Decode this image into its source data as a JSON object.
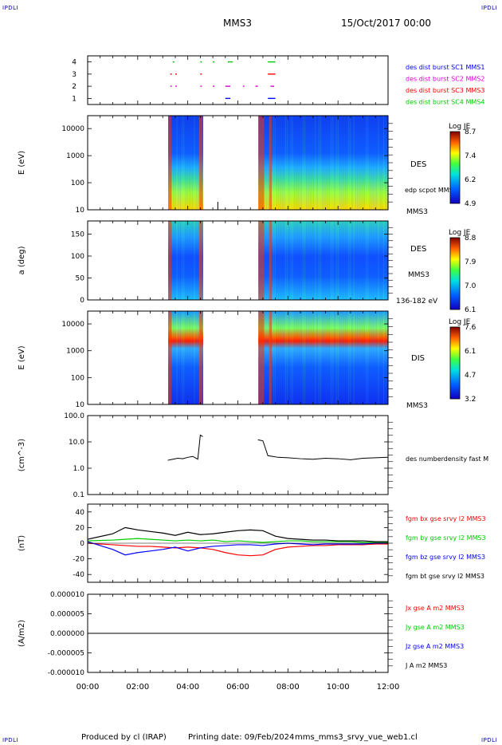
{
  "header": {
    "corner_label": "IPDLI",
    "spacecraft": "MMS3",
    "date": "15/Oct/2017 00:00"
  },
  "footer": {
    "produced_by": "Produced by cl (IRAP)",
    "printing_date": "Printing date: 09/Feb/2024",
    "file": "mms_mms3_srvy_vue_web1.cl"
  },
  "time_axis": {
    "ticks": [
      "00:00",
      "02:00",
      "04:00",
      "06:00",
      "08:00",
      "10:00",
      "12:00"
    ],
    "hours": [
      0,
      2,
      4,
      6,
      8,
      10,
      12
    ]
  },
  "colors": {
    "red": "#ff0000",
    "green": "#00cc00",
    "blue": "#0000ff",
    "magenta": "#dd00dd",
    "black": "#000000"
  },
  "chart_data": [
    {
      "type": "scatter",
      "panel": "burst-availability",
      "yticks": [
        "1",
        "2",
        "3",
        "4"
      ],
      "ylim": [
        0.5,
        4.5
      ],
      "legend": [
        {
          "name": "des dist burst SC1 MMS1",
          "color": "#0000ff"
        },
        {
          "name": "des dist burst SC2 MMS2",
          "color": "#dd00dd"
        },
        {
          "name": "des dist burst SC3 MMS3",
          "color": "#ff0000"
        },
        {
          "name": "des dist burst SC4 MMS4",
          "color": "#00cc00"
        }
      ],
      "series": [
        {
          "y": 1,
          "color": "#0000ff",
          "intervals": [
            [
              5.5,
              5.7
            ],
            [
              7.2,
              7.5
            ]
          ]
        },
        {
          "y": 2,
          "color": "#dd00dd",
          "intervals": [
            [
              3.3,
              3.35
            ],
            [
              3.5,
              3.55
            ],
            [
              4.5,
              4.55
            ],
            [
              5.0,
              5.05
            ],
            [
              5.5,
              5.7
            ],
            [
              6.2,
              6.25
            ],
            [
              6.7,
              6.8
            ],
            [
              7.3,
              7.45
            ]
          ]
        },
        {
          "y": 3,
          "color": "#ff0000",
          "intervals": [
            [
              3.3,
              3.35
            ],
            [
              3.5,
              3.55
            ],
            [
              4.5,
              4.55
            ],
            [
              7.2,
              7.5
            ]
          ]
        },
        {
          "y": 4,
          "color": "#00cc00",
          "intervals": [
            [
              3.4,
              3.45
            ],
            [
              4.5,
              4.55
            ],
            [
              5.0,
              5.05
            ],
            [
              5.6,
              5.8
            ],
            [
              7.2,
              7.5
            ]
          ]
        }
      ]
    },
    {
      "type": "heatmap",
      "panel": "des-energy",
      "ylabel": "E (eV)",
      "yscale": "log",
      "yticks": [
        "10",
        "100",
        "1000",
        "10000"
      ],
      "ylim": [
        10,
        30000
      ],
      "species": "DES",
      "annotation": "edp scpot MMS3",
      "spacecraft": "MMS3",
      "colorbar": {
        "title": "Log JE",
        "ticks": [
          "8.7",
          "7.4",
          "6.2",
          "4.9"
        ]
      },
      "data_gaps_hours": [
        [
          0,
          3.2
        ],
        [
          4.6,
          6.8
        ]
      ]
    },
    {
      "type": "heatmap",
      "panel": "des-pitch-angle",
      "ylabel": "a (deg)",
      "yticks": [
        "0",
        "50",
        "100",
        "150"
      ],
      "ylim": [
        0,
        180
      ],
      "species": "DES",
      "spacecraft": "MMS3",
      "energy_range": "136-182 eV",
      "colorbar": {
        "title": "Log JE",
        "ticks": [
          "8.8",
          "7.9",
          "7.0",
          "6.1"
        ]
      },
      "data_gaps_hours": [
        [
          0,
          3.2
        ],
        [
          4.6,
          6.8
        ]
      ]
    },
    {
      "type": "heatmap",
      "panel": "dis-energy",
      "ylabel": "E (eV)",
      "yscale": "log",
      "yticks": [
        "10",
        "100",
        "1000",
        "10000"
      ],
      "ylim": [
        10,
        30000
      ],
      "species": "DIS",
      "spacecraft": "MMS3",
      "colorbar": {
        "title": "Log JE",
        "ticks": [
          "7.6",
          "6.1",
          "4.7",
          "3.2"
        ]
      },
      "data_gaps_hours": [
        [
          0,
          3.2
        ],
        [
          4.6,
          6.8
        ]
      ]
    },
    {
      "type": "line",
      "panel": "density",
      "ylabel": "(cm^-3)",
      "yscale": "log",
      "yticks": [
        "0.1",
        "1.0",
        "10.0",
        "100.0"
      ],
      "ylim": [
        0.1,
        100
      ],
      "legend": [
        {
          "name": "des numberdensity fast M",
          "color": "#000000"
        }
      ],
      "segments": [
        {
          "x": [
            3.2,
            3.4,
            3.6,
            3.8,
            4.0,
            4.2,
            4.4,
            4.5,
            4.6
          ],
          "y": [
            2.0,
            2.2,
            2.4,
            2.3,
            2.6,
            2.8,
            2.2,
            18,
            16
          ]
        },
        {
          "x": [
            6.8,
            7.0,
            7.2,
            7.4,
            7.6,
            8.0,
            8.5,
            9.0,
            9.5,
            10.0,
            10.5,
            11.0,
            11.5,
            12.0
          ],
          "y": [
            12,
            11,
            3.0,
            2.8,
            2.6,
            2.5,
            2.3,
            2.2,
            2.4,
            2.3,
            2.1,
            2.4,
            2.5,
            2.6
          ]
        }
      ]
    },
    {
      "type": "line",
      "panel": "magnetic-field",
      "ylabel": "(nT)",
      "yticks": [
        "-40",
        "-20",
        "0",
        "20",
        "40"
      ],
      "ylim": [
        -50,
        50
      ],
      "x": [
        0,
        1,
        1.5,
        2,
        2.5,
        3,
        3.5,
        4,
        4.5,
        5,
        5.5,
        6,
        6.5,
        7,
        7.5,
        8,
        8.5,
        9,
        9.5,
        10,
        10.5,
        11,
        11.5,
        12
      ],
      "series": [
        {
          "name": "fgm bx gse srvy l2 MMS3",
          "color": "#ff0000",
          "values": [
            0,
            -2,
            -3,
            -4,
            -4,
            -5,
            -6,
            -5,
            -6,
            -8,
            -12,
            -15,
            -16,
            -15,
            -8,
            -5,
            -4,
            -3,
            -3,
            -2,
            -2,
            -2,
            -1,
            -1
          ]
        },
        {
          "name": "fgm by gse srvy l2 MMS3",
          "color": "#00cc00",
          "values": [
            3,
            4,
            5,
            6,
            5,
            4,
            3,
            4,
            3,
            4,
            2,
            3,
            2,
            1,
            2,
            3,
            3,
            2,
            2,
            2,
            2,
            1,
            1,
            1
          ]
        },
        {
          "name": "fgm bz gse srvy l2 MMS3",
          "color": "#0000ff",
          "values": [
            2,
            -8,
            -15,
            -12,
            -10,
            -8,
            -5,
            -10,
            -6,
            -4,
            -3,
            -2,
            -2,
            -3,
            -1,
            0,
            -1,
            -2,
            -1,
            -1,
            -1,
            -1,
            0,
            0
          ]
        },
        {
          "name": "fgm bt gse srvy l2 MMS3",
          "color": "#000000",
          "values": [
            5,
            12,
            20,
            17,
            15,
            13,
            10,
            14,
            11,
            12,
            14,
            16,
            17,
            16,
            9,
            6,
            5,
            4,
            4,
            3,
            3,
            3,
            2,
            2
          ]
        }
      ]
    },
    {
      "type": "line",
      "panel": "current-density",
      "ylabel": "(A/m2)",
      "yticks": [
        "-0.000010",
        "-0.000005",
        "0.000000",
        "0.000005",
        "0.000010"
      ],
      "ylim": [
        -1e-05,
        1e-05
      ],
      "x": [
        0,
        3,
        6,
        9,
        12
      ],
      "series": [
        {
          "name": "Jx gse A m2 MMS3",
          "color": "#ff0000",
          "values": [
            0,
            0,
            0,
            0,
            0
          ]
        },
        {
          "name": "Jy gse A m2 MMS3",
          "color": "#00cc00",
          "values": [
            0,
            0,
            0,
            0,
            0
          ]
        },
        {
          "name": "Jz gse A m2 MMS3",
          "color": "#0000ff",
          "values": [
            0,
            0,
            0,
            0,
            0
          ]
        },
        {
          "name": "J A m2 MMS3",
          "color": "#000000",
          "values": [
            0,
            0,
            0,
            0,
            0
          ]
        }
      ]
    }
  ]
}
